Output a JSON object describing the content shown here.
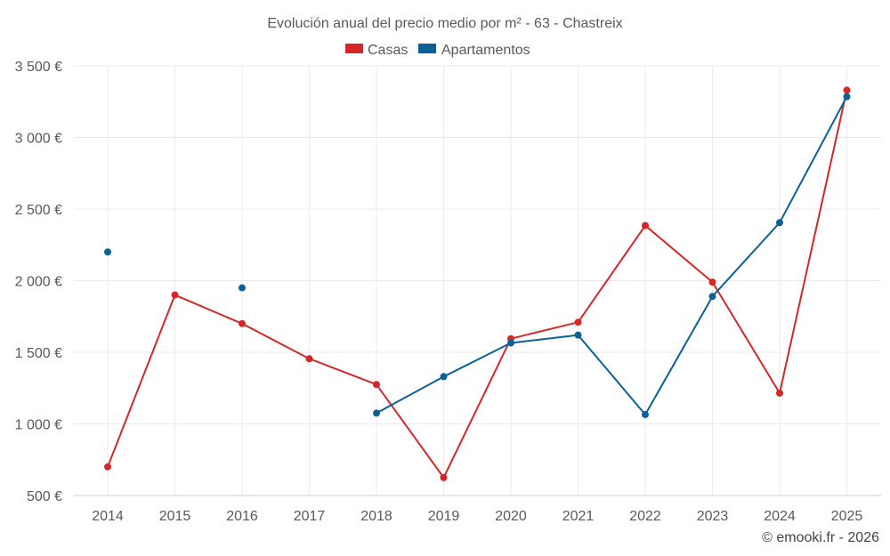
{
  "chart_data": {
    "type": "line",
    "title": "Evolución anual del precio medio por m² - 63 - Chastreix",
    "xlabel": "",
    "ylabel": "",
    "categories": [
      "2014",
      "2015",
      "2016",
      "2017",
      "2018",
      "2019",
      "2020",
      "2021",
      "2022",
      "2023",
      "2024",
      "2025"
    ],
    "ylim": [
      500,
      3500
    ],
    "yticks": [
      500,
      1000,
      1500,
      2000,
      2500,
      3000,
      3500
    ],
    "ytick_labels": [
      "500 €",
      "1 000 €",
      "1 500 €",
      "2 000 €",
      "2 500 €",
      "3 000 €",
      "3 500 €"
    ],
    "grid": true,
    "legend_position": "top-center",
    "series": [
      {
        "name": "Casas",
        "color": "#d62728",
        "values": [
          700,
          1900,
          1700,
          1455,
          1275,
          625,
          1595,
          1710,
          2385,
          1990,
          1215,
          3330
        ]
      },
      {
        "name": "Apartamentos",
        "color": "#0b6196",
        "values": [
          2200,
          null,
          1950,
          null,
          1075,
          1330,
          1565,
          1620,
          1065,
          1890,
          2405,
          3285
        ]
      }
    ]
  },
  "credit": "© emooki.fr - 2026"
}
